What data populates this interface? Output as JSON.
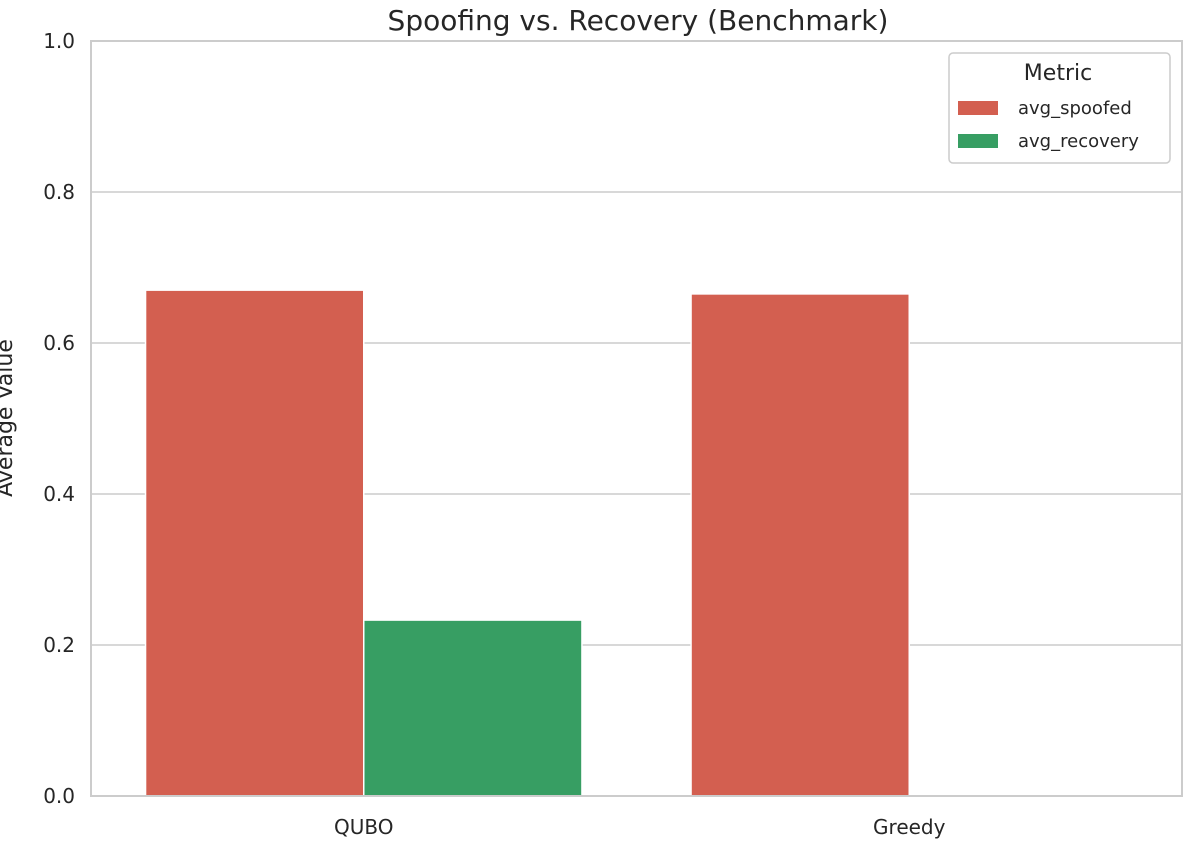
{
  "chart_data": {
    "type": "bar",
    "title": "Spoofing vs. Recovery (Benchmark)",
    "xlabel": "",
    "ylabel": "Average Value",
    "categories": [
      "QUBO",
      "Greedy"
    ],
    "series": [
      {
        "name": "avg_spoofed",
        "values": [
          0.67,
          0.665
        ],
        "color": "#d35f50"
      },
      {
        "name": "avg_recovery",
        "values": [
          0.233,
          0.0
        ],
        "color": "#379e63"
      }
    ],
    "ylim": [
      0,
      1.0
    ],
    "yticks": [
      "0.0",
      "0.2",
      "0.4",
      "0.6",
      "0.8",
      "1.0"
    ],
    "grid": "y",
    "legend": {
      "title": "Metric",
      "position": "top-right"
    }
  }
}
